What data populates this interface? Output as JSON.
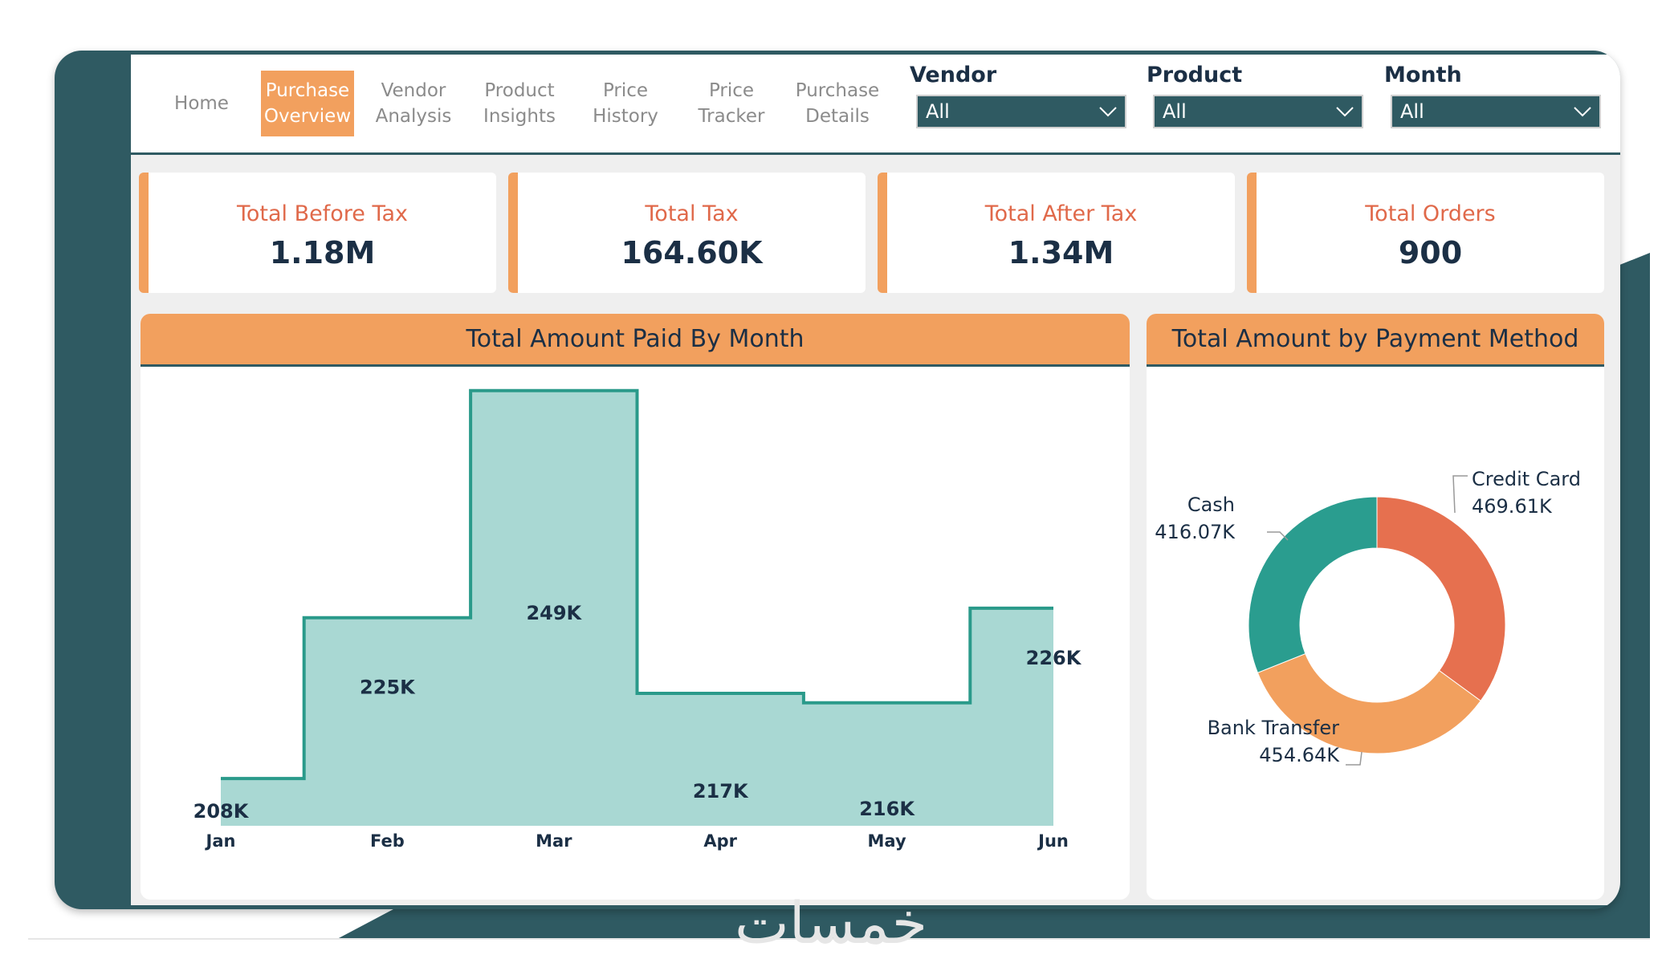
{
  "nav": {
    "tabs": [
      {
        "label": "Home",
        "active": false
      },
      {
        "label": "Purchase\nOverview",
        "active": true
      },
      {
        "label": "Vendor\nAnalysis",
        "active": false
      },
      {
        "label": "Product\nInsights",
        "active": false
      },
      {
        "label": "Price\nHistory",
        "active": false
      },
      {
        "label": "Price\nTracker",
        "active": false
      },
      {
        "label": "Purchase\nDetails",
        "active": false
      }
    ]
  },
  "filters": {
    "vendor": {
      "label": "Vendor",
      "value": "All"
    },
    "product": {
      "label": "Product",
      "value": "All"
    },
    "month": {
      "label": "Month",
      "value": "All"
    }
  },
  "kpis": {
    "before_tax": {
      "label": "Total Before Tax",
      "value": "1.18M"
    },
    "tax": {
      "label": "Total Tax",
      "value": "164.60K"
    },
    "after_tax": {
      "label": "Total After Tax",
      "value": "1.34M"
    },
    "orders": {
      "label": "Total Orders",
      "value": "900"
    }
  },
  "colors": {
    "accent": "#f2a05e",
    "teal_dark": "#2f5a62",
    "area_fill": "#a9d8d3",
    "area_line": "#2a9a8a",
    "credit_card": "#e6704f",
    "bank_transfer": "#f2a05e",
    "cash": "#2a9d8f",
    "text_dark": "#1b2f45"
  },
  "watermark": "خمسات",
  "chart_data": [
    {
      "type": "area",
      "title": "Total Amount Paid By Month",
      "categories": [
        "Jan",
        "Feb",
        "Mar",
        "Apr",
        "May",
        "Jun"
      ],
      "values": [
        208,
        225,
        249,
        217,
        216,
        226
      ],
      "data_labels": [
        "208K",
        "225K",
        "249K",
        "217K",
        "216K",
        "226K"
      ],
      "ylim": [
        203,
        250
      ],
      "step": true
    },
    {
      "type": "pie",
      "title": "Total Amount by Payment Method",
      "labels": [
        "Credit Card",
        "Bank Transfer",
        "Cash"
      ],
      "values": [
        469.61,
        454.64,
        416.07
      ],
      "data_labels": [
        "469.61K",
        "454.64K",
        "416.07K"
      ],
      "donut": true
    }
  ]
}
